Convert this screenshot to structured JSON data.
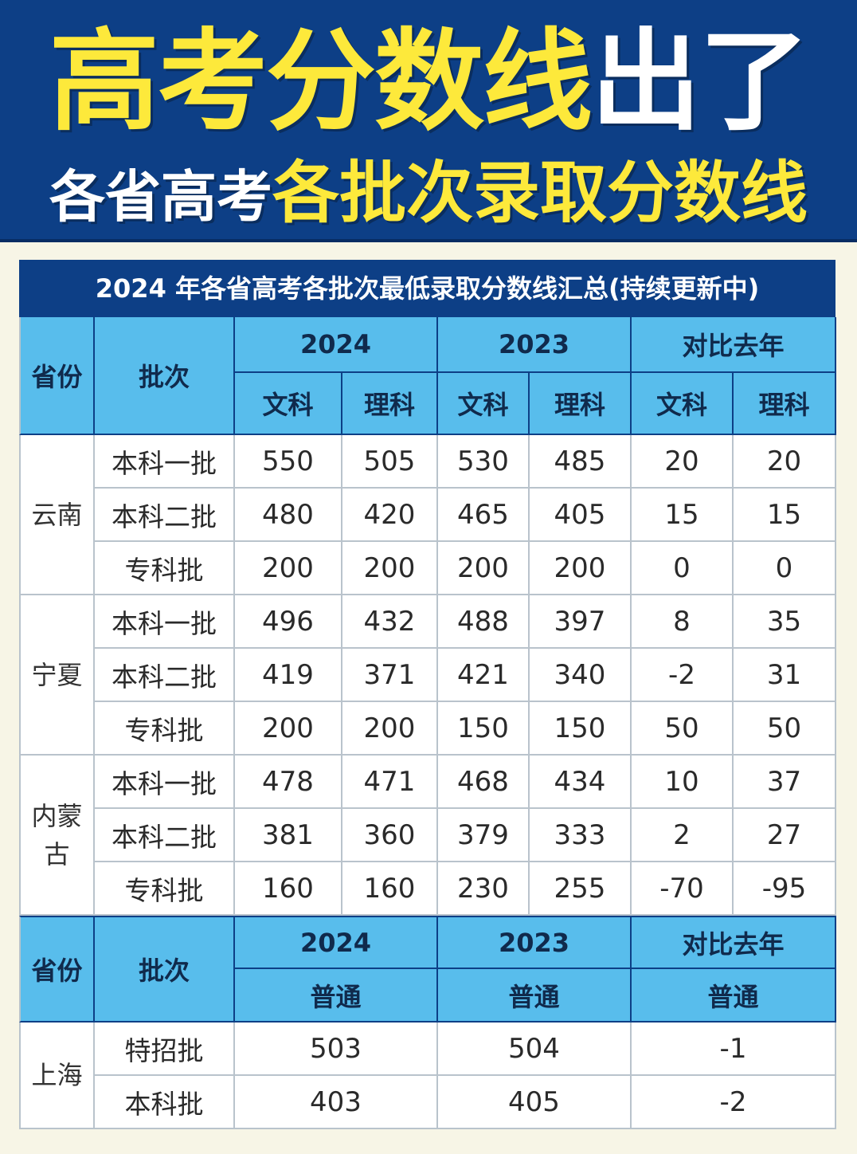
{
  "banner": {
    "line1_yellow": "高考分数线",
    "line1_white": "出了",
    "line2_white": "各省高考",
    "line2_yellow": "各批次录取分数线"
  },
  "table": {
    "title": "2024 年各省高考各批次最低录取分数线汇总(持续更新中)",
    "header": {
      "province": "省份",
      "batch": "批次",
      "y2024": "2024",
      "y2023": "2023",
      "compare": "对比去年",
      "arts": "文科",
      "science": "理科"
    },
    "groups": [
      {
        "province": "云南",
        "rows": [
          {
            "batch": "本科一批",
            "a2024": "550",
            "s2024": "505",
            "a2023": "530",
            "s2023": "485",
            "da": "20",
            "ds": "20"
          },
          {
            "batch": "本科二批",
            "a2024": "480",
            "s2024": "420",
            "a2023": "465",
            "s2023": "405",
            "da": "15",
            "ds": "15"
          },
          {
            "batch": "专科批",
            "a2024": "200",
            "s2024": "200",
            "a2023": "200",
            "s2023": "200",
            "da": "0",
            "ds": "0"
          }
        ]
      },
      {
        "province": "宁夏",
        "rows": [
          {
            "batch": "本科一批",
            "a2024": "496",
            "s2024": "432",
            "a2023": "488",
            "s2023": "397",
            "da": "8",
            "ds": "35"
          },
          {
            "batch": "本科二批",
            "a2024": "419",
            "s2024": "371",
            "a2023": "421",
            "s2023": "340",
            "da": "-2",
            "ds": "31"
          },
          {
            "batch": "专科批",
            "a2024": "200",
            "s2024": "200",
            "a2023": "150",
            "s2023": "150",
            "da": "50",
            "ds": "50"
          }
        ]
      },
      {
        "province": "内蒙古",
        "rows": [
          {
            "batch": "本科一批",
            "a2024": "478",
            "s2024": "471",
            "a2023": "468",
            "s2023": "434",
            "da": "10",
            "ds": "37"
          },
          {
            "batch": "本科二批",
            "a2024": "381",
            "s2024": "360",
            "a2023": "379",
            "s2023": "333",
            "da": "2",
            "ds": "27"
          },
          {
            "batch": "专科批",
            "a2024": "160",
            "s2024": "160",
            "a2023": "230",
            "s2023": "255",
            "da": "-70",
            "ds": "-95"
          }
        ]
      }
    ],
    "header2": {
      "province": "省份",
      "batch": "批次",
      "y2024": "2024",
      "y2023": "2023",
      "compare": "对比去年",
      "general": "普通"
    },
    "shanghai": {
      "province": "上海",
      "rows": [
        {
          "batch": "特招批",
          "v2024": "503",
          "v2023": "504",
          "diff": "-1"
        },
        {
          "batch": "本科批",
          "v2024": "403",
          "v2023": "405",
          "diff": "-2"
        }
      ]
    }
  }
}
